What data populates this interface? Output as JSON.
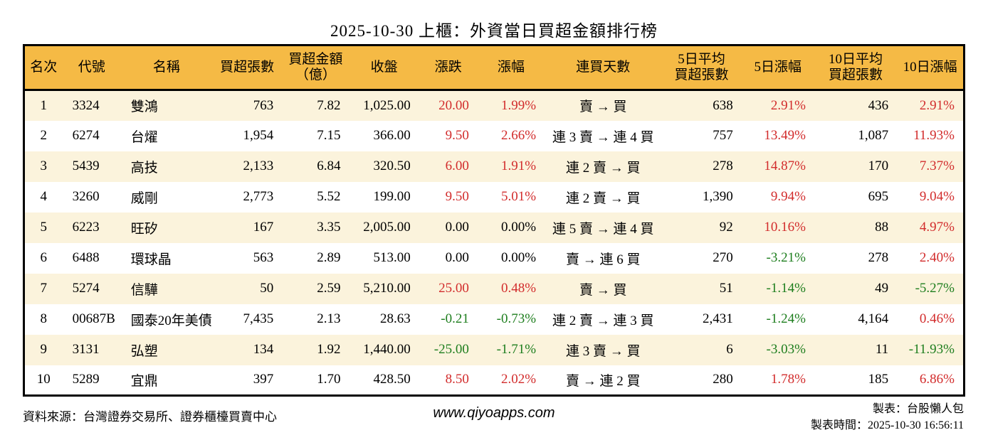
{
  "title": "2025-10-30 上櫃：外資當日買超金額排行榜",
  "colors": {
    "header_bg": "#F5BA45",
    "stripe_bg": "#FBF3DC",
    "up_red": "#D22C2C",
    "down_green": "#1E7E1E",
    "border": "#000000"
  },
  "table": {
    "headers": [
      "名次",
      "代號",
      "名稱",
      "買超張數",
      "買超金額\n（億）",
      "收盤",
      "漲跌",
      "漲幅",
      "連買天數",
      "5日平均\n買超張數",
      "5日漲幅",
      "10日平均\n買超張數",
      "10日漲幅"
    ],
    "rows": [
      {
        "rank": "1",
        "code": "3324",
        "name": "雙鴻",
        "volume": "763",
        "amount": "7.82",
        "close": "1,025.00",
        "change": "20.00",
        "change_color": "up",
        "change_pct": "1.99%",
        "change_pct_color": "up",
        "streak": "賣 → 買",
        "avg5": "638",
        "pct5": "2.91%",
        "pct5_color": "up",
        "avg10": "436",
        "pct10": "2.91%",
        "pct10_color": "up"
      },
      {
        "rank": "2",
        "code": "6274",
        "name": "台燿",
        "volume": "1,954",
        "amount": "7.15",
        "close": "366.00",
        "change": "9.50",
        "change_color": "up",
        "change_pct": "2.66%",
        "change_pct_color": "up",
        "streak": "連 3 賣 → 連 4 買",
        "avg5": "757",
        "pct5": "13.49%",
        "pct5_color": "up",
        "avg10": "1,087",
        "pct10": "11.93%",
        "pct10_color": "up"
      },
      {
        "rank": "3",
        "code": "5439",
        "name": "高技",
        "volume": "2,133",
        "amount": "6.84",
        "close": "320.50",
        "change": "6.00",
        "change_color": "up",
        "change_pct": "1.91%",
        "change_pct_color": "up",
        "streak": "連 2 賣 → 買",
        "avg5": "278",
        "pct5": "14.87%",
        "pct5_color": "up",
        "avg10": "170",
        "pct10": "7.37%",
        "pct10_color": "up"
      },
      {
        "rank": "4",
        "code": "3260",
        "name": "威剛",
        "volume": "2,773",
        "amount": "5.52",
        "close": "199.00",
        "change": "9.50",
        "change_color": "up",
        "change_pct": "5.01%",
        "change_pct_color": "up",
        "streak": "連 2 賣 → 買",
        "avg5": "1,390",
        "pct5": "9.94%",
        "pct5_color": "up",
        "avg10": "695",
        "pct10": "9.04%",
        "pct10_color": "up"
      },
      {
        "rank": "5",
        "code": "6223",
        "name": "旺矽",
        "volume": "167",
        "amount": "3.35",
        "close": "2,005.00",
        "change": "0.00",
        "change_color": "flat",
        "change_pct": "0.00%",
        "change_pct_color": "flat",
        "streak": "連 5 賣 → 連 4 買",
        "avg5": "92",
        "pct5": "10.16%",
        "pct5_color": "up",
        "avg10": "88",
        "pct10": "4.97%",
        "pct10_color": "up"
      },
      {
        "rank": "6",
        "code": "6488",
        "name": "環球晶",
        "volume": "563",
        "amount": "2.89",
        "close": "513.00",
        "change": "0.00",
        "change_color": "flat",
        "change_pct": "0.00%",
        "change_pct_color": "flat",
        "streak": "賣 → 連 6 買",
        "avg5": "270",
        "pct5": "-3.21%",
        "pct5_color": "down",
        "avg10": "278",
        "pct10": "2.40%",
        "pct10_color": "up"
      },
      {
        "rank": "7",
        "code": "5274",
        "name": "信驊",
        "volume": "50",
        "amount": "2.59",
        "close": "5,210.00",
        "change": "25.00",
        "change_color": "up",
        "change_pct": "0.48%",
        "change_pct_color": "up",
        "streak": "賣 → 買",
        "avg5": "51",
        "pct5": "-1.14%",
        "pct5_color": "down",
        "avg10": "49",
        "pct10": "-5.27%",
        "pct10_color": "down"
      },
      {
        "rank": "8",
        "code": "00687B",
        "name": "國泰20年美債",
        "volume": "7,435",
        "amount": "2.13",
        "close": "28.63",
        "change": "-0.21",
        "change_color": "down",
        "change_pct": "-0.73%",
        "change_pct_color": "down",
        "streak": "連 2 賣 → 連 3 買",
        "avg5": "2,431",
        "pct5": "-1.24%",
        "pct5_color": "down",
        "avg10": "4,164",
        "pct10": "0.46%",
        "pct10_color": "up"
      },
      {
        "rank": "9",
        "code": "3131",
        "name": "弘塑",
        "volume": "134",
        "amount": "1.92",
        "close": "1,440.00",
        "change": "-25.00",
        "change_color": "down",
        "change_pct": "-1.71%",
        "change_pct_color": "down",
        "streak": "連 3 賣 → 買",
        "avg5": "6",
        "pct5": "-3.03%",
        "pct5_color": "down",
        "avg10": "11",
        "pct10": "-11.93%",
        "pct10_color": "down"
      },
      {
        "rank": "10",
        "code": "5289",
        "name": "宜鼎",
        "volume": "397",
        "amount": "1.70",
        "close": "428.50",
        "change": "8.50",
        "change_color": "up",
        "change_pct": "2.02%",
        "change_pct_color": "up",
        "streak": "賣 → 連 2 買",
        "avg5": "280",
        "pct5": "1.78%",
        "pct5_color": "up",
        "avg10": "185",
        "pct10": "6.86%",
        "pct10_color": "up"
      }
    ]
  },
  "footer": {
    "source": "資料來源：台灣證券交易所、證券櫃檯買賣中心",
    "website": "www.qiyoapps.com",
    "maker": "製表：台股懶人包",
    "made_time": "製表時間：2025-10-30 16:56:11"
  }
}
